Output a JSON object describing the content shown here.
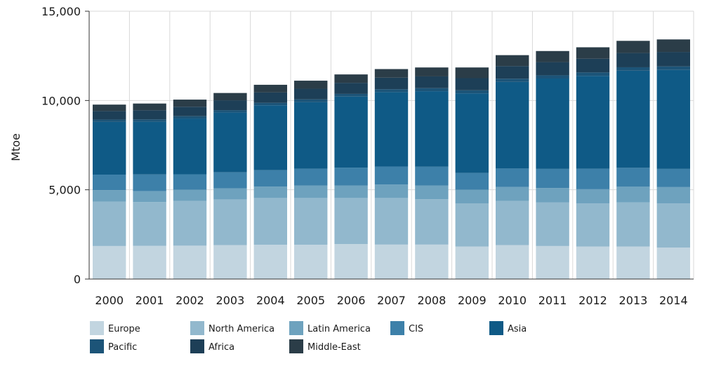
{
  "chart_data": {
    "type": "bar",
    "stacked": true,
    "title": "",
    "xlabel": "",
    "ylabel": "Mtoe",
    "ylim": [
      0,
      15000
    ],
    "yticks": [
      0,
      5000,
      10000,
      15000
    ],
    "ytick_labels": [
      "0",
      "5,000",
      "10,000",
      "15,000"
    ],
    "grid": true,
    "legend_position": "bottom",
    "categories": [
      "2000",
      "2001",
      "2002",
      "2003",
      "2004",
      "2005",
      "2006",
      "2007",
      "2008",
      "2009",
      "2010",
      "2011",
      "2012",
      "2013",
      "2014"
    ],
    "series": [
      {
        "name": "Europe",
        "color": "#c2d5e0",
        "values": [
          1850,
          1860,
          1870,
          1900,
          1920,
          1920,
          1960,
          1930,
          1930,
          1820,
          1900,
          1850,
          1820,
          1820,
          1760
        ]
      },
      {
        "name": "North America",
        "color": "#92b8cd",
        "values": [
          2480,
          2450,
          2510,
          2560,
          2620,
          2620,
          2580,
          2610,
          2540,
          2420,
          2480,
          2450,
          2410,
          2470,
          2470
        ]
      },
      {
        "name": "Latin America",
        "color": "#6ea2be",
        "values": [
          650,
          620,
          620,
          620,
          640,
          700,
          700,
          750,
          770,
          760,
          780,
          800,
          800,
          880,
          920
        ]
      },
      {
        "name": "CIS",
        "color": "#3d80a9",
        "values": [
          870,
          930,
          870,
          900,
          920,
          940,
          1000,
          1010,
          1050,
          940,
          1030,
          1070,
          1150,
          1060,
          1020
        ]
      },
      {
        "name": "Asia",
        "color": "#0f5a86",
        "values": [
          2950,
          2950,
          3120,
          3350,
          3630,
          3730,
          3980,
          4170,
          4230,
          4460,
          4850,
          5060,
          5200,
          5440,
          5540
        ]
      },
      {
        "name": "Pacific",
        "color": "#1c5478",
        "values": [
          130,
          130,
          130,
          130,
          140,
          150,
          150,
          160,
          170,
          170,
          180,
          180,
          190,
          190,
          200
        ]
      },
      {
        "name": "Africa",
        "color": "#1d3f57",
        "values": [
          480,
          510,
          530,
          550,
          580,
          600,
          620,
          650,
          660,
          680,
          710,
          740,
          770,
          800,
          810
        ]
      },
      {
        "name": "Middle-East",
        "color": "#2b3d48",
        "values": [
          360,
          380,
          400,
          410,
          430,
          450,
          470,
          480,
          500,
          600,
          610,
          620,
          640,
          680,
          700
        ]
      }
    ]
  }
}
